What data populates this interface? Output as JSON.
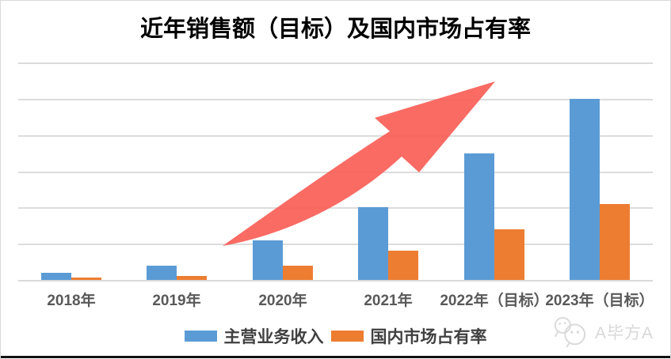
{
  "title": "近年销售额（目标）及国内市场占有率",
  "colors": {
    "bar_blue": "#5B9BD5",
    "bar_orange": "#ED7D31",
    "gridline": "#DCDCDC",
    "arrow_red": "#FA5E57",
    "axis_label": "#595959",
    "legend_text": "#404040",
    "watermark_gray": "#D8D8D8"
  },
  "chart_data": {
    "type": "bar",
    "title": "近年销售额（目标）及国内市场占有率",
    "categories": [
      "2018年",
      "2019年",
      "2020年",
      "2021年",
      "2022年（目标）",
      "2023年（目标）"
    ],
    "series": [
      {
        "name": "主营业务收入",
        "color": "#5B9BD5",
        "values": [
          0.2,
          0.4,
          1.1,
          2.0,
          3.5,
          5.0
        ]
      },
      {
        "name": "国内市场占有率",
        "color": "#ED7D31",
        "values": [
          0.07,
          0.11,
          0.4,
          0.8,
          1.4,
          2.1
        ]
      }
    ],
    "ylim": [
      0,
      6
    ],
    "y_axis_labels_visible": false,
    "gridline_count": 7,
    "grid": "horizontal",
    "legend_position": "bottom",
    "annotations": [
      {
        "type": "arrow",
        "color": "#FA5E57",
        "description": "red curved growth arrow sweeping up from 2020 to above 2022"
      }
    ]
  },
  "legend": {
    "items": [
      {
        "label": "主营业务收入",
        "color": "#5B9BD5"
      },
      {
        "label": "国内市场占有率",
        "color": "#ED7D31"
      }
    ]
  },
  "watermark": {
    "text": "A毕方A",
    "icon": "wechat-chat-bubbles-icon"
  }
}
